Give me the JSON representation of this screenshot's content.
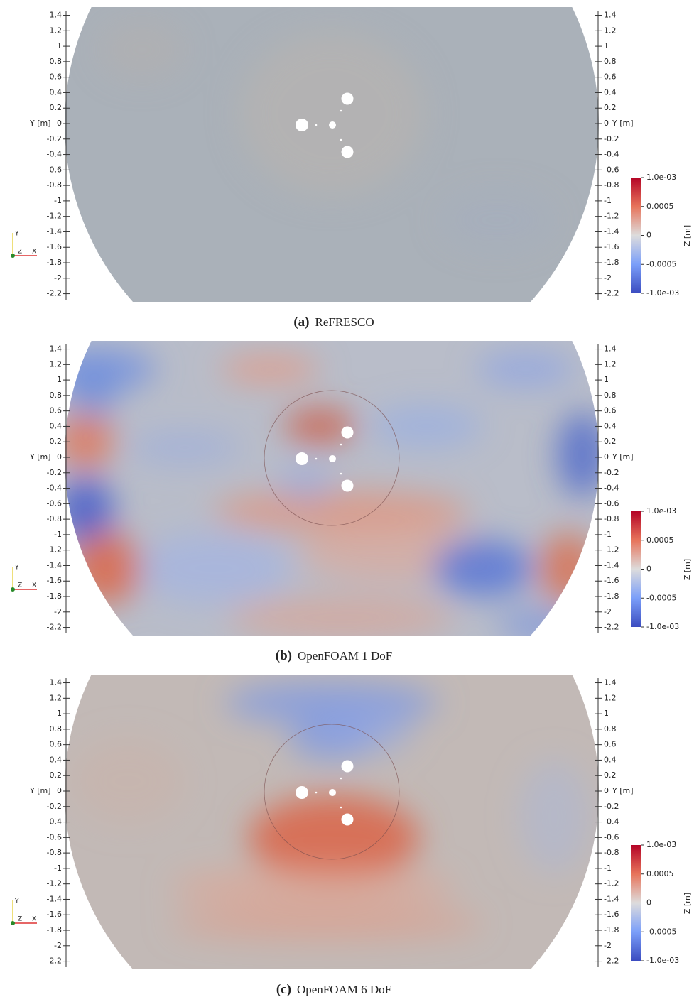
{
  "panels": [
    {
      "label": "(a)",
      "caption": "ReFRESCO"
    },
    {
      "label": "(b)",
      "caption": "OpenFOAM 1 DoF"
    },
    {
      "label": "(c)",
      "caption": "OpenFOAM 6 DoF"
    }
  ],
  "axis": {
    "label": "Y [m]",
    "ticks": [
      1.4,
      1.2,
      1,
      0.8,
      0.6,
      0.4,
      0.2,
      0,
      -0.2,
      -0.4,
      -0.6,
      -0.8,
      -1,
      -1.2,
      -1.4,
      -1.6,
      -1.8,
      -2,
      -2.2
    ]
  },
  "colorbar": {
    "title": "Z [m]",
    "range": [
      -0.001,
      0.001
    ],
    "ticks": [
      {
        "value": 0.001,
        "label": "1.0e-03"
      },
      0.0005,
      0,
      -0.0005,
      {
        "value": -0.001,
        "label": "-1.0e-03"
      }
    ]
  },
  "triad": {
    "y": "Y",
    "z": "Z",
    "x": "X"
  }
}
